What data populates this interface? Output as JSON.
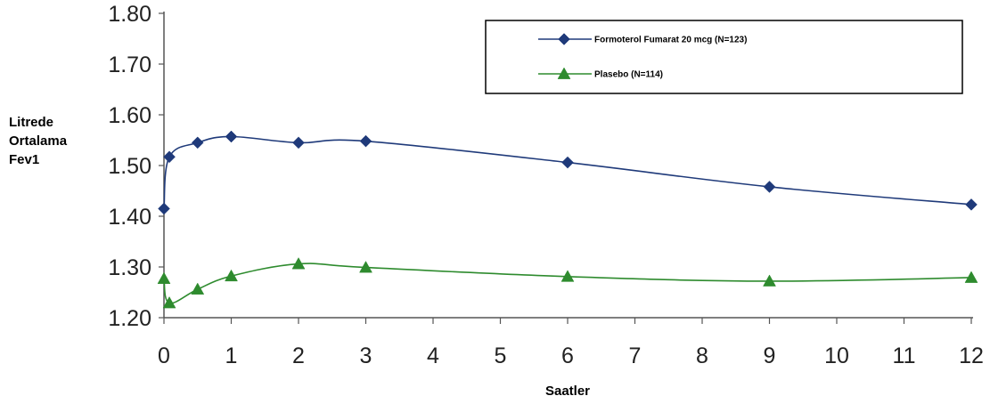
{
  "chart_data": {
    "type": "line",
    "xlabel": "Saatler",
    "ylabel_lines": [
      "Litrede",
      "Ortalama",
      "Fev1"
    ],
    "xlim": [
      0,
      12
    ],
    "ylim": [
      1.2,
      1.8
    ],
    "x_ticks": [
      0,
      1,
      2,
      3,
      4,
      5,
      6,
      7,
      8,
      9,
      10,
      11,
      12
    ],
    "y_ticks": [
      "1.20",
      "1.30",
      "1.40",
      "1.50",
      "1.60",
      "1.70",
      "1.80"
    ],
    "grid": false,
    "legend_position": "top-right",
    "series": [
      {
        "name": "Formoterol Fumarat 20 mcg (N=123)",
        "color": "#1f3a7a",
        "marker": "diamond",
        "points": [
          {
            "x": 0,
            "y": 1.415
          },
          {
            "x": 0.08,
            "y": 1.517
          },
          {
            "x": 0.5,
            "y": 1.545
          },
          {
            "x": 1,
            "y": 1.557
          },
          {
            "x": 2,
            "y": 1.545
          },
          {
            "x": 3,
            "y": 1.548
          },
          {
            "x": 6,
            "y": 1.506
          },
          {
            "x": 9,
            "y": 1.458
          },
          {
            "x": 12,
            "y": 1.423
          }
        ]
      },
      {
        "name": "Plasebo (N=114)",
        "color": "#2e8b2e",
        "marker": "triangle",
        "points": [
          {
            "x": 0,
            "y": 1.277
          },
          {
            "x": 0.08,
            "y": 1.229
          },
          {
            "x": 0.5,
            "y": 1.256
          },
          {
            "x": 1,
            "y": 1.282
          },
          {
            "x": 2,
            "y": 1.306
          },
          {
            "x": 3,
            "y": 1.299
          },
          {
            "x": 6,
            "y": 1.281
          },
          {
            "x": 9,
            "y": 1.272
          },
          {
            "x": 12,
            "y": 1.279
          }
        ]
      }
    ]
  }
}
